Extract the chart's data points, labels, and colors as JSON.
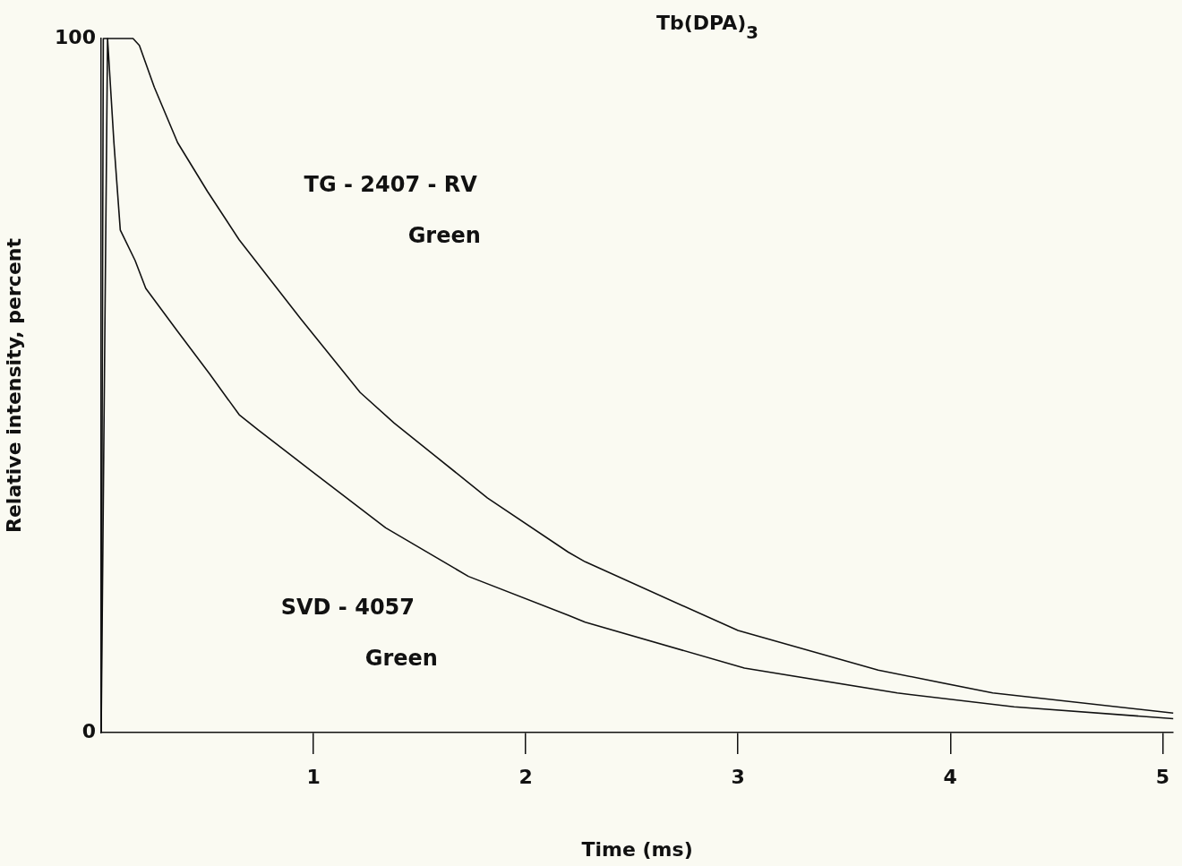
{
  "chart_data": {
    "type": "line",
    "title": "Tb(DPA)$_{3}$",
    "xlabel": "Time (ms)",
    "ylabel": "Relative intensity, percent",
    "xlim": [
      0,
      5.05
    ],
    "xticks": [
      1,
      2,
      3,
      4,
      5
    ],
    "ylim": [
      0,
      100
    ],
    "yticks": [
      0,
      100
    ],
    "marker": "none",
    "line_style": "solid",
    "series": [
      {
        "name": "TG - 2407 - RV\nGreen",
        "color": "#111111",
        "x": [
          0,
          0.01,
          0.15,
          0.18,
          0.25,
          0.36,
          0.5,
          0.65,
          0.94,
          1.22,
          1.38,
          1.82,
          2.2,
          2.28,
          3.0,
          3.66,
          4.2,
          5.05
        ],
        "values": [
          0,
          100,
          100,
          99,
          93,
          85,
          78,
          71,
          59.6,
          49,
          44.6,
          33.8,
          26,
          24.6,
          14.7,
          9,
          5.7,
          2.8
        ]
      },
      {
        "name": "SVD - 4057\nGreen",
        "color": "#111111",
        "x": [
          0,
          0.03,
          0.06,
          0.09,
          0.16,
          0.21,
          0.36,
          0.51,
          0.65,
          0.74,
          0.99,
          1.34,
          1.73,
          2.2,
          2.28,
          3.03,
          3.75,
          4.3,
          5.05
        ],
        "values": [
          0,
          100,
          85,
          72.4,
          68,
          64,
          57.8,
          51.7,
          45.8,
          43.6,
          37.7,
          29.5,
          22.5,
          16.9,
          15.9,
          9.3,
          5.7,
          3.7,
          2
        ]
      }
    ]
  }
}
